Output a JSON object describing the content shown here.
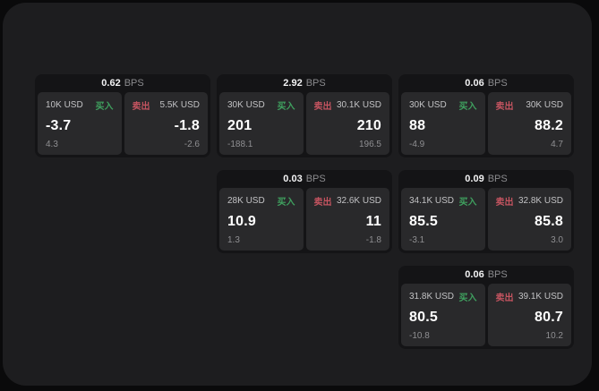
{
  "labels": {
    "buy": "买入",
    "sell": "卖出",
    "bps": "BPS"
  },
  "colors": {
    "buy_green": "#3fa05f",
    "sell_red": "#c45460",
    "panel_background": "#1d1d1f",
    "card_background": "#141416",
    "tile_background": "#29292b"
  },
  "cards": [
    {
      "col": 1,
      "row": 1,
      "bps": "0.62",
      "buy": {
        "amount": "10K USD",
        "price": "-3.7",
        "delta": "4.3"
      },
      "sell": {
        "amount": "5.5K USD",
        "price": "-1.8",
        "delta": "-2.6"
      }
    },
    {
      "col": 2,
      "row": 1,
      "bps": "2.92",
      "buy": {
        "amount": "30K USD",
        "price": "201",
        "delta": "-188.1"
      },
      "sell": {
        "amount": "30.1K USD",
        "price": "210",
        "delta": "196.5"
      }
    },
    {
      "col": 3,
      "row": 1,
      "bps": "0.06",
      "buy": {
        "amount": "30K USD",
        "price": "88",
        "delta": "-4.9"
      },
      "sell": {
        "amount": "30K USD",
        "price": "88.2",
        "delta": "4.7"
      }
    },
    {
      "col": 2,
      "row": 2,
      "bps": "0.03",
      "buy": {
        "amount": "28K USD",
        "price": "10.9",
        "delta": "1.3"
      },
      "sell": {
        "amount": "32.6K USD",
        "price": "11",
        "delta": "-1.8"
      }
    },
    {
      "col": 3,
      "row": 2,
      "bps": "0.09",
      "buy": {
        "amount": "34.1K USD",
        "price": "85.5",
        "delta": "-3.1"
      },
      "sell": {
        "amount": "32.8K USD",
        "price": "85.8",
        "delta": "3.0"
      }
    },
    {
      "col": 3,
      "row": 3,
      "bps": "0.06",
      "buy": {
        "amount": "31.8K USD",
        "price": "80.5",
        "delta": "-10.8"
      },
      "sell": {
        "amount": "39.1K USD",
        "price": "80.7",
        "delta": "10.2"
      }
    }
  ]
}
